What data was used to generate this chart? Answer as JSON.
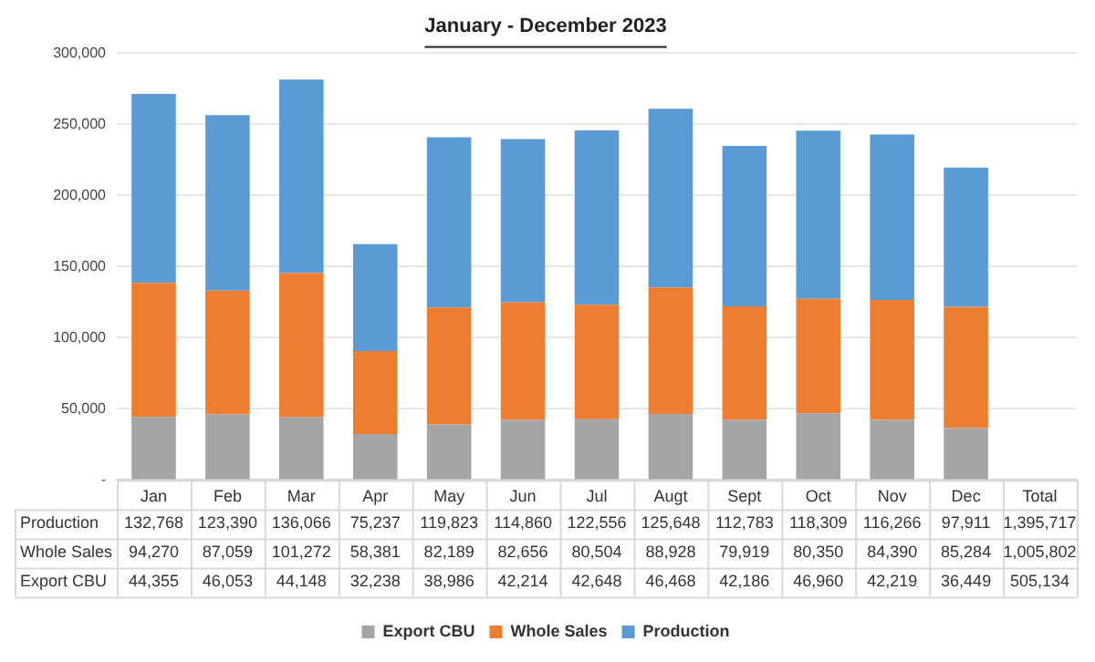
{
  "chart_data": {
    "type": "bar",
    "title": "January - December 2023",
    "stacked": true,
    "grid": "y",
    "legend": "bottom",
    "categories": [
      "Jan",
      "Feb",
      "Mar",
      "Apr",
      "May",
      "Jun",
      "Jul",
      "Augt",
      "Sept",
      "Oct",
      "Nov",
      "Dec",
      "Total"
    ],
    "ylim": [
      0,
      300000
    ],
    "yticks": [
      {
        "value": 0,
        "label": "-"
      },
      {
        "value": 50000,
        "label": "50,000"
      },
      {
        "value": 100000,
        "label": "100,000"
      },
      {
        "value": 150000,
        "label": "150,000"
      },
      {
        "value": 200000,
        "label": "200,000"
      },
      {
        "value": 250000,
        "label": "250,000"
      },
      {
        "value": 300000,
        "label": "300,000"
      }
    ],
    "series": [
      {
        "name": "Export CBU",
        "color": "#a5a5a5",
        "values": [
          44355,
          46053,
          44148,
          32238,
          38986,
          42214,
          42648,
          46468,
          42186,
          46960,
          42219,
          36449,
          null
        ],
        "value_labels": [
          "44,355",
          "46,053",
          "44,148",
          "32,238",
          "38,986",
          "42,214",
          "42,648",
          "46,468",
          "42,186",
          "46,960",
          "42,219",
          "36,449",
          "505,134"
        ]
      },
      {
        "name": "Whole Sales",
        "color": "#ed7d31",
        "values": [
          94270,
          87059,
          101272,
          58381,
          82189,
          82656,
          80504,
          88928,
          79919,
          80350,
          84390,
          85284,
          null
        ],
        "value_labels": [
          "94,270",
          "87,059",
          "101,272",
          "58,381",
          "82,189",
          "82,656",
          "80,504",
          "88,928",
          "79,919",
          "80,350",
          "84,390",
          "85,284",
          "1,005,802"
        ]
      },
      {
        "name": "Production",
        "color": "#5b9bd5",
        "values": [
          132768,
          123390,
          136066,
          75237,
          119823,
          114860,
          122556,
          125648,
          112783,
          118309,
          116266,
          97911,
          null
        ],
        "value_labels": [
          "132,768",
          "123,390",
          "136,066",
          "75,237",
          "119,823",
          "114,860",
          "122,556",
          "125,648",
          "112,783",
          "118,309",
          "116,266",
          "97,911",
          "1,395,717"
        ]
      }
    ]
  }
}
